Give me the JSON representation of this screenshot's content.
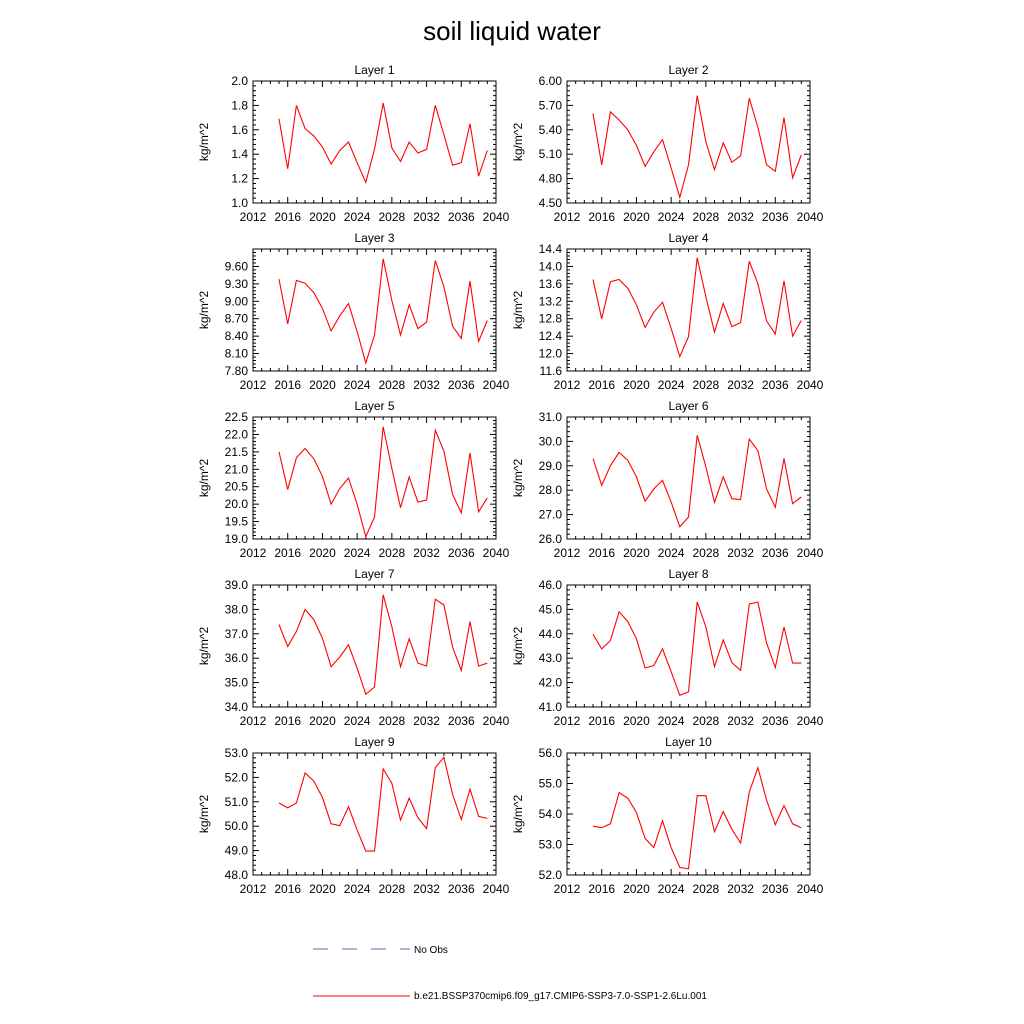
{
  "title": "soil liquid water",
  "legend": {
    "no_obs_label": "No Obs",
    "no_obs_color": "#5a6fb8",
    "series_label": "b.e21.BSSP370cmip6.f09_g17.CMIP6-SSP3-7.0-SSP1-2.6Lu.001",
    "series_color": "#ff0000"
  },
  "chart_data": [
    {
      "type": "line",
      "title": "Layer 1",
      "ylabel": "kg/m^2",
      "xlim": [
        2012,
        2040
      ],
      "xticks": [
        2012,
        2016,
        2020,
        2024,
        2028,
        2032,
        2036,
        2040
      ],
      "ylim": [
        1.0,
        2.0
      ],
      "yticks": [
        "1.0",
        "1.2",
        "1.4",
        "1.6",
        "1.8",
        "2.0"
      ],
      "x": [
        2015,
        2016,
        2017,
        2018,
        2019,
        2020,
        2021,
        2022,
        2023,
        2024,
        2025,
        2026,
        2027,
        2028,
        2029,
        2030,
        2031,
        2032,
        2033,
        2034,
        2035,
        2036,
        2037,
        2038,
        2039
      ],
      "values": [
        1.69,
        1.28,
        1.8,
        1.61,
        1.55,
        1.46,
        1.32,
        1.43,
        1.5,
        1.33,
        1.17,
        1.44,
        1.82,
        1.45,
        1.34,
        1.5,
        1.41,
        1.44,
        1.8,
        1.56,
        1.31,
        1.33,
        1.65,
        1.22,
        1.43
      ]
    },
    {
      "type": "line",
      "title": "Layer 2",
      "ylabel": "kg/m^2",
      "xlim": [
        2012,
        2040
      ],
      "xticks": [
        2012,
        2016,
        2020,
        2024,
        2028,
        2032,
        2036,
        2040
      ],
      "ylim": [
        4.5,
        6.0
      ],
      "yticks": [
        "4.50",
        "4.80",
        "5.10",
        "5.40",
        "5.70",
        "6.00"
      ],
      "x": [
        2015,
        2016,
        2017,
        2018,
        2019,
        2020,
        2021,
        2022,
        2023,
        2024,
        2025,
        2026,
        2027,
        2028,
        2029,
        2030,
        2031,
        2032,
        2033,
        2034,
        2035,
        2036,
        2037,
        2038,
        2039
      ],
      "values": [
        5.6,
        4.97,
        5.62,
        5.52,
        5.4,
        5.21,
        4.95,
        5.13,
        5.28,
        4.93,
        4.57,
        4.97,
        5.82,
        5.25,
        4.91,
        5.24,
        5.0,
        5.08,
        5.79,
        5.43,
        4.97,
        4.89,
        5.55,
        4.81,
        5.09
      ]
    },
    {
      "type": "line",
      "title": "Layer 3",
      "ylabel": "kg/m^2",
      "xlim": [
        2012,
        2040
      ],
      "xticks": [
        2012,
        2016,
        2020,
        2024,
        2028,
        2032,
        2036,
        2040
      ],
      "ylim": [
        7.8,
        9.9
      ],
      "yticks": [
        "7.80",
        "8.10",
        "8.40",
        "8.70",
        "9.00",
        "9.30",
        "9.60"
      ],
      "x": [
        2015,
        2016,
        2017,
        2018,
        2019,
        2020,
        2021,
        2022,
        2023,
        2024,
        2025,
        2026,
        2027,
        2028,
        2029,
        2030,
        2031,
        2032,
        2033,
        2034,
        2035,
        2036,
        2037,
        2038,
        2039
      ],
      "values": [
        9.38,
        8.61,
        9.36,
        9.31,
        9.15,
        8.88,
        8.49,
        8.75,
        8.96,
        8.48,
        7.94,
        8.42,
        9.73,
        9.01,
        8.42,
        8.94,
        8.53,
        8.64,
        9.7,
        9.25,
        8.57,
        8.36,
        9.35,
        8.31,
        8.67
      ]
    },
    {
      "type": "line",
      "title": "Layer 4",
      "ylabel": "kg/m^2",
      "xlim": [
        2012,
        2040
      ],
      "xticks": [
        2012,
        2016,
        2020,
        2024,
        2028,
        2032,
        2036,
        2040
      ],
      "ylim": [
        11.6,
        14.4
      ],
      "yticks": [
        "11.6",
        "12.0",
        "12.4",
        "12.8",
        "13.2",
        "13.6",
        "14.0",
        "14.4"
      ],
      "x": [
        2015,
        2016,
        2017,
        2018,
        2019,
        2020,
        2021,
        2022,
        2023,
        2024,
        2025,
        2026,
        2027,
        2028,
        2029,
        2030,
        2031,
        2032,
        2033,
        2034,
        2035,
        2036,
        2037,
        2038,
        2039
      ],
      "values": [
        13.7,
        12.8,
        13.65,
        13.7,
        13.5,
        13.12,
        12.6,
        12.95,
        13.18,
        12.58,
        11.93,
        12.39,
        14.2,
        13.3,
        12.49,
        13.15,
        12.62,
        12.71,
        14.12,
        13.6,
        12.75,
        12.45,
        13.67,
        12.4,
        12.76
      ]
    },
    {
      "type": "line",
      "title": "Layer 5",
      "ylabel": "kg/m^2",
      "xlim": [
        2012,
        2040
      ],
      "xticks": [
        2012,
        2016,
        2020,
        2024,
        2028,
        2032,
        2036,
        2040
      ],
      "ylim": [
        19.0,
        22.5
      ],
      "yticks": [
        "19.0",
        "19.5",
        "20.0",
        "20.5",
        "21.0",
        "21.5",
        "22.0",
        "22.5"
      ],
      "x": [
        2015,
        2016,
        2017,
        2018,
        2019,
        2020,
        2021,
        2022,
        2023,
        2024,
        2025,
        2026,
        2027,
        2028,
        2029,
        2030,
        2031,
        2032,
        2033,
        2034,
        2035,
        2036,
        2037,
        2038,
        2039
      ],
      "values": [
        21.5,
        20.42,
        21.33,
        21.6,
        21.3,
        20.8,
        20.0,
        20.45,
        20.75,
        20.0,
        19.07,
        19.63,
        22.22,
        21.02,
        19.9,
        20.78,
        20.06,
        20.12,
        22.12,
        21.52,
        20.28,
        19.75,
        21.47,
        19.78,
        20.18
      ]
    },
    {
      "type": "line",
      "title": "Layer 6",
      "ylabel": "kg/m^2",
      "xlim": [
        2012,
        2040
      ],
      "xticks": [
        2012,
        2016,
        2020,
        2024,
        2028,
        2032,
        2036,
        2040
      ],
      "ylim": [
        26.0,
        31.0
      ],
      "yticks": [
        "26.0",
        "27.0",
        "28.0",
        "29.0",
        "30.0",
        "31.0"
      ],
      "x": [
        2015,
        2016,
        2017,
        2018,
        2019,
        2020,
        2021,
        2022,
        2023,
        2024,
        2025,
        2026,
        2027,
        2028,
        2029,
        2030,
        2031,
        2032,
        2033,
        2034,
        2035,
        2036,
        2037,
        2038,
        2039
      ],
      "values": [
        29.3,
        28.2,
        29.0,
        29.55,
        29.22,
        28.55,
        27.55,
        28.05,
        28.4,
        27.52,
        26.5,
        26.9,
        30.25,
        28.95,
        27.5,
        28.55,
        27.65,
        27.62,
        30.1,
        29.62,
        28.05,
        27.3,
        29.3,
        27.45,
        27.72
      ]
    },
    {
      "type": "line",
      "title": "Layer 7",
      "ylabel": "kg/m^2",
      "xlim": [
        2012,
        2040
      ],
      "xticks": [
        2012,
        2016,
        2020,
        2024,
        2028,
        2032,
        2036,
        2040
      ],
      "ylim": [
        34.0,
        39.0
      ],
      "yticks": [
        "34.0",
        "35.0",
        "36.0",
        "37.0",
        "38.0",
        "39.0"
      ],
      "x": [
        2015,
        2016,
        2017,
        2018,
        2019,
        2020,
        2021,
        2022,
        2023,
        2024,
        2025,
        2026,
        2027,
        2028,
        2029,
        2030,
        2031,
        2032,
        2033,
        2034,
        2035,
        2036,
        2037,
        2038,
        2039
      ],
      "values": [
        37.38,
        36.48,
        37.1,
        38.0,
        37.58,
        36.82,
        35.65,
        36.05,
        36.55,
        35.6,
        34.52,
        34.82,
        38.6,
        37.28,
        35.65,
        36.8,
        35.8,
        35.68,
        38.42,
        38.18,
        36.45,
        35.5,
        37.5,
        35.68,
        35.8
      ]
    },
    {
      "type": "line",
      "title": "Layer 8",
      "ylabel": "kg/m^2",
      "xlim": [
        2012,
        2040
      ],
      "xticks": [
        2012,
        2016,
        2020,
        2024,
        2028,
        2032,
        2036,
        2040
      ],
      "ylim": [
        41.0,
        46.0
      ],
      "yticks": [
        "41.0",
        "42.0",
        "43.0",
        "44.0",
        "45.0",
        "46.0"
      ],
      "x": [
        2015,
        2016,
        2017,
        2018,
        2019,
        2020,
        2021,
        2022,
        2023,
        2024,
        2025,
        2026,
        2027,
        2028,
        2029,
        2030,
        2031,
        2032,
        2033,
        2034,
        2035,
        2036,
        2037,
        2038,
        2039
      ],
      "values": [
        43.98,
        43.38,
        43.72,
        44.9,
        44.5,
        43.8,
        42.6,
        42.7,
        43.38,
        42.45,
        41.48,
        41.62,
        45.3,
        44.28,
        42.65,
        43.75,
        42.82,
        42.5,
        45.22,
        45.3,
        43.62,
        42.62,
        44.28,
        42.8,
        42.8
      ]
    },
    {
      "type": "line",
      "title": "Layer 9",
      "ylabel": "kg/m^2",
      "xlim": [
        2012,
        2040
      ],
      "xticks": [
        2012,
        2016,
        2020,
        2024,
        2028,
        2032,
        2036,
        2040
      ],
      "ylim": [
        48.0,
        53.0
      ],
      "yticks": [
        "48.0",
        "49.0",
        "50.0",
        "51.0",
        "52.0",
        "53.0"
      ],
      "x": [
        2015,
        2016,
        2017,
        2018,
        2019,
        2020,
        2021,
        2022,
        2023,
        2024,
        2025,
        2026,
        2027,
        2028,
        2029,
        2030,
        2031,
        2032,
        2033,
        2034,
        2035,
        2036,
        2037,
        2038,
        2039
      ],
      "values": [
        50.95,
        50.75,
        50.95,
        52.18,
        51.85,
        51.18,
        50.1,
        50.02,
        50.8,
        49.85,
        48.98,
        48.98,
        52.35,
        51.75,
        50.25,
        51.15,
        50.35,
        49.9,
        52.4,
        52.82,
        51.3,
        50.28,
        51.52,
        50.4,
        50.32
      ]
    },
    {
      "type": "line",
      "title": "Layer 10",
      "ylabel": "kg/m^2",
      "xlim": [
        2012,
        2040
      ],
      "xticks": [
        2012,
        2016,
        2020,
        2024,
        2028,
        2032,
        2036,
        2040
      ],
      "ylim": [
        52.0,
        56.0
      ],
      "yticks": [
        "52.0",
        "53.0",
        "54.0",
        "55.0",
        "56.0"
      ],
      "x": [
        2015,
        2016,
        2017,
        2018,
        2019,
        2020,
        2021,
        2022,
        2023,
        2024,
        2025,
        2026,
        2027,
        2028,
        2029,
        2030,
        2031,
        2032,
        2033,
        2034,
        2035,
        2036,
        2037,
        2038,
        2039
      ],
      "values": [
        53.6,
        53.55,
        53.68,
        54.7,
        54.52,
        54.05,
        53.2,
        52.9,
        53.78,
        52.9,
        52.25,
        52.2,
        54.6,
        54.6,
        53.42,
        54.08,
        53.5,
        53.05,
        54.72,
        55.52,
        54.45,
        53.65,
        54.28,
        53.68,
        53.55
      ]
    }
  ]
}
